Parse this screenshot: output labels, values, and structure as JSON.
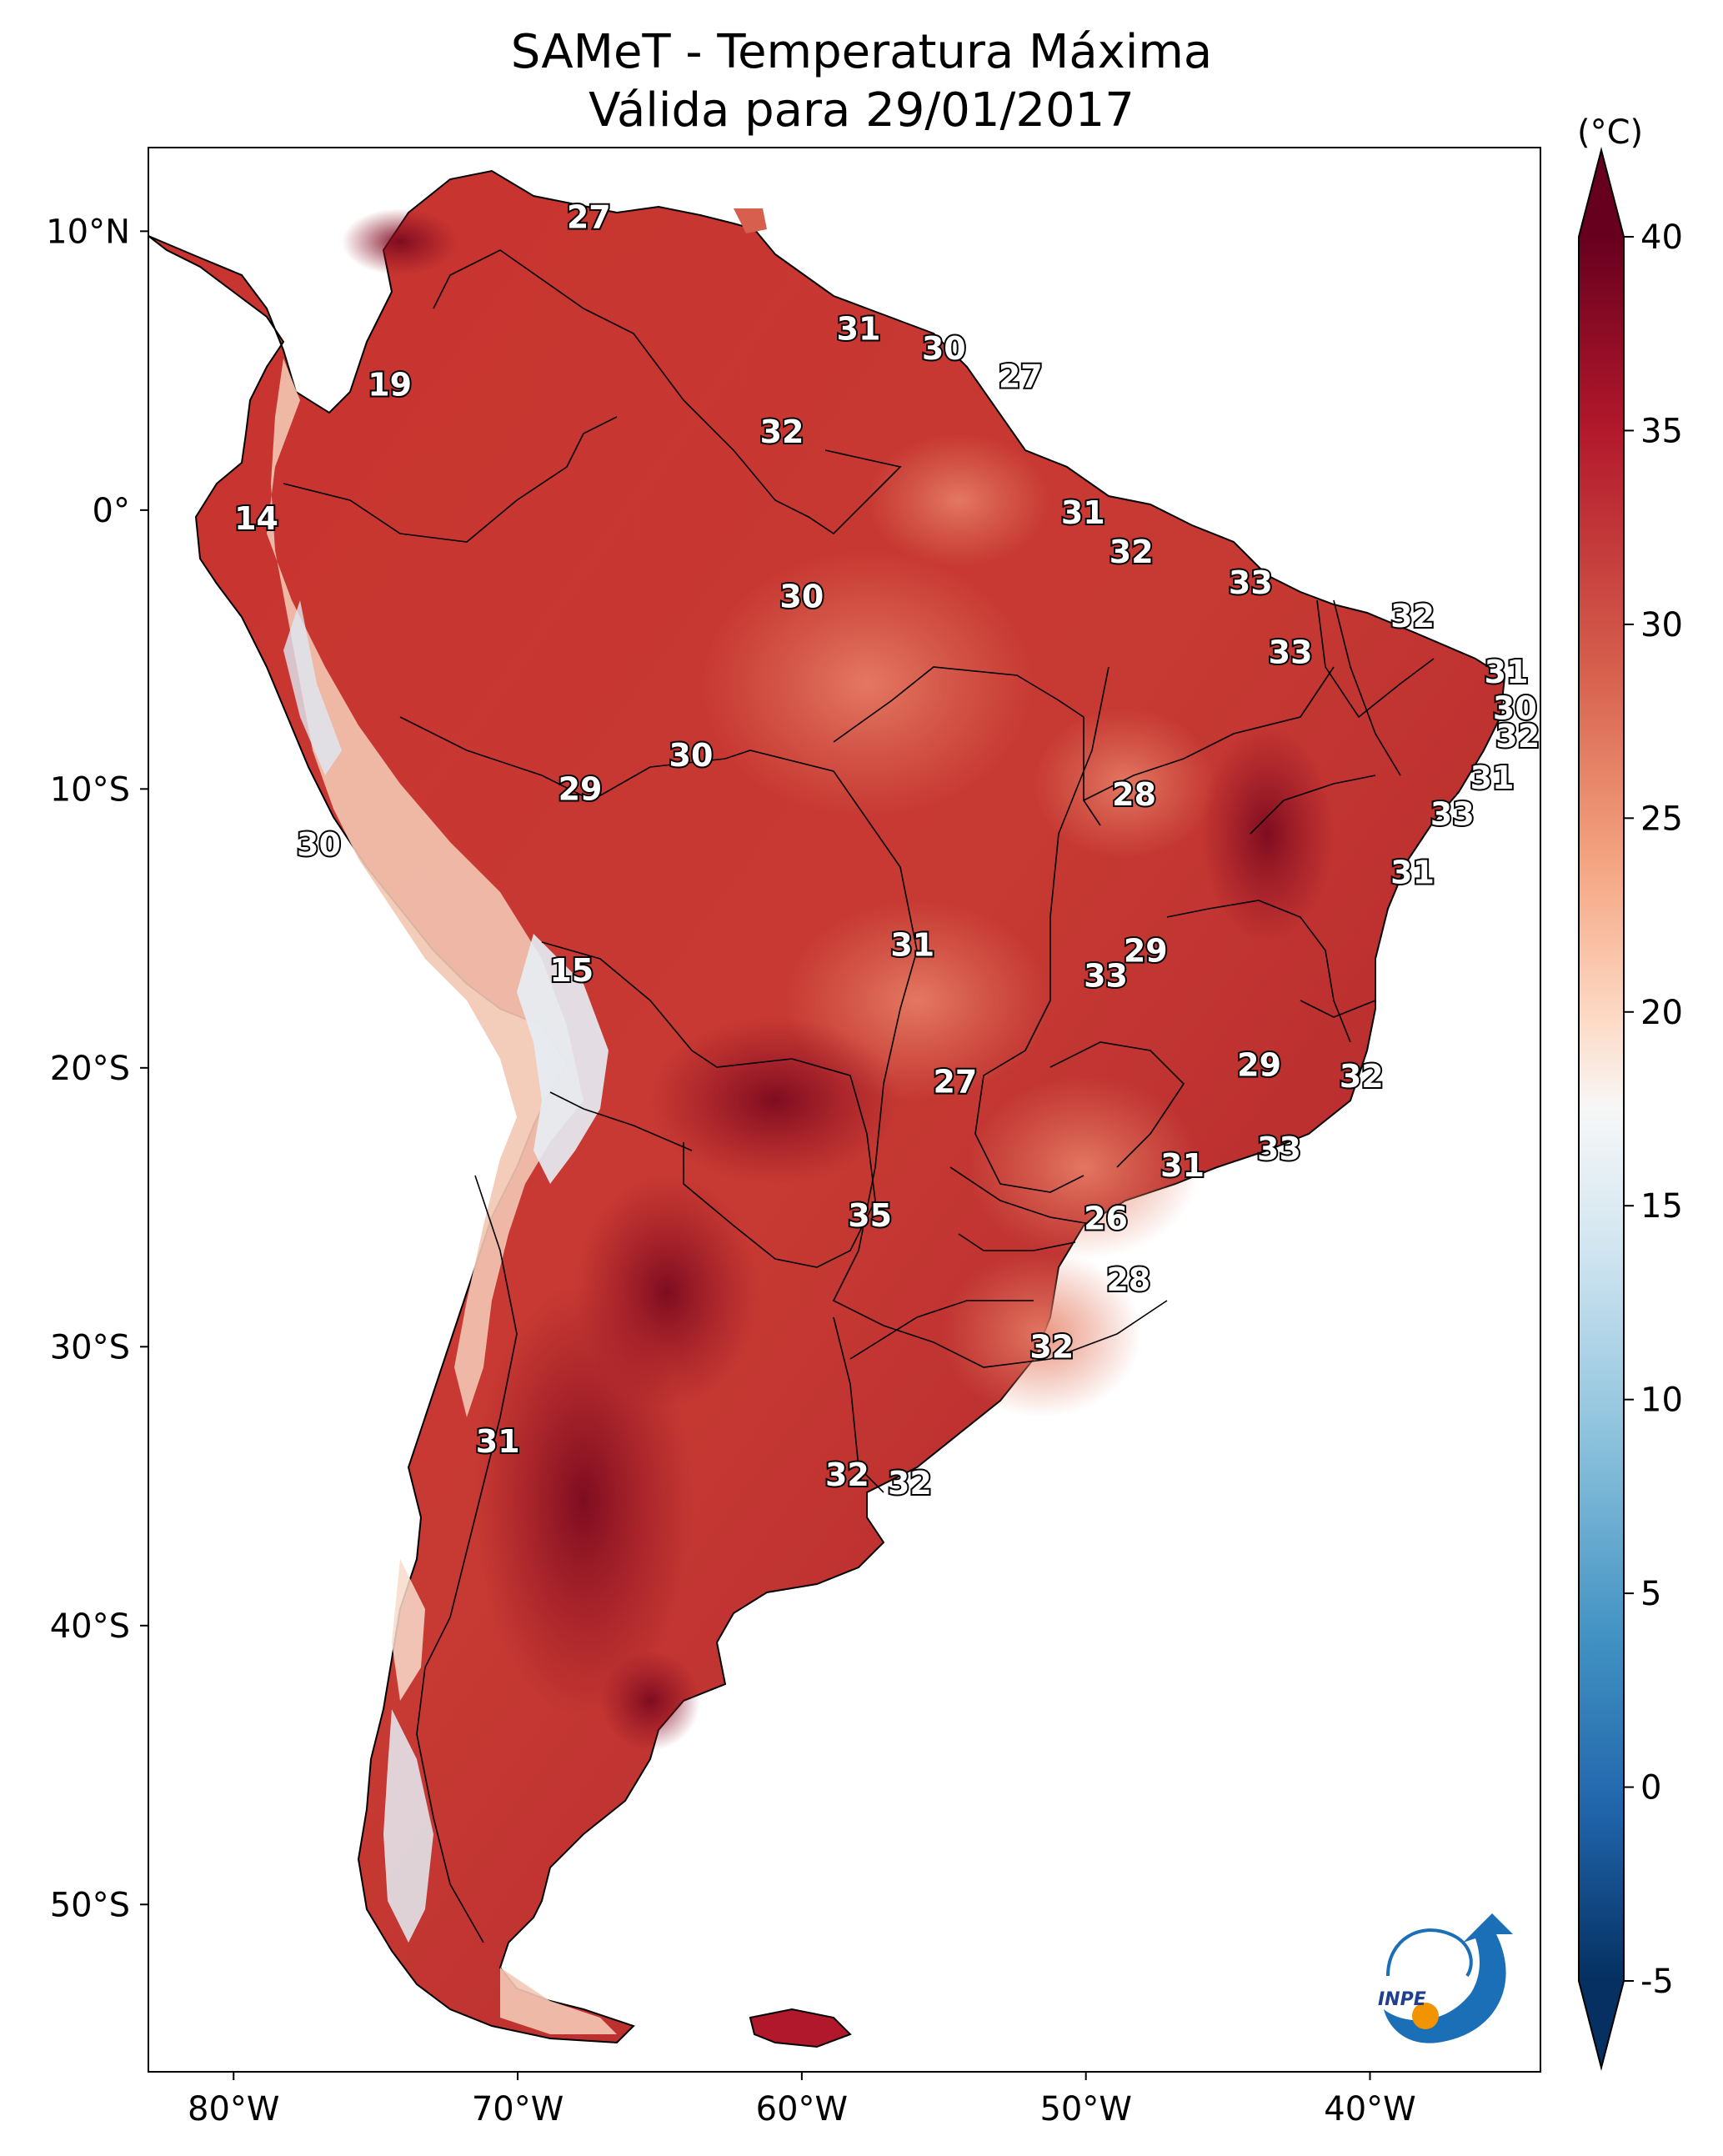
{
  "title": {
    "line1": "SAMeT - Temperatura Máxima",
    "line2": "Válida para 29/01/2017"
  },
  "colorbar": {
    "unit": "(°C)",
    "ticks": [
      "40",
      "35",
      "30",
      "25",
      "20",
      "15",
      "10",
      "5",
      "0",
      "-5"
    ]
  },
  "axes": {
    "lat_labels": [
      "10°N",
      "0°",
      "10°S",
      "20°S",
      "30°S",
      "40°S",
      "50°S"
    ],
    "lon_labels": [
      "80°W",
      "70°W",
      "60°W",
      "50°W",
      "40°W"
    ]
  },
  "logo": {
    "text": "INPE"
  },
  "map_data": {
    "region": "South America",
    "variable": "Temperatura Máxima",
    "lon_range": [
      -83,
      -34
    ],
    "lat_range": [
      -56,
      13
    ],
    "colorbar_range": [
      -5,
      40
    ],
    "colormap": "RdBu_r",
    "station_values": [
      {
        "label": "27",
        "lon": -67.5,
        "lat": 10.5
      },
      {
        "label": "31",
        "lon": -58.0,
        "lat": 6.5
      },
      {
        "label": "30",
        "lon": -55.0,
        "lat": 5.8
      },
      {
        "label": "27",
        "lon": -52.3,
        "lat": 4.8
      },
      {
        "label": "19",
        "lon": -74.5,
        "lat": 4.5
      },
      {
        "label": "32",
        "lon": -60.7,
        "lat": 2.8
      },
      {
        "label": "14",
        "lon": -79.2,
        "lat": -0.3
      },
      {
        "label": "31",
        "lon": -50.1,
        "lat": -0.1
      },
      {
        "label": "32",
        "lon": -48.4,
        "lat": -1.5
      },
      {
        "label": "33",
        "lon": -44.2,
        "lat": -2.6
      },
      {
        "label": "30",
        "lon": -60.0,
        "lat": -3.1
      },
      {
        "label": "32",
        "lon": -38.5,
        "lat": -3.8
      },
      {
        "label": "33",
        "lon": -42.8,
        "lat": -5.1
      },
      {
        "label": "31",
        "lon": -35.2,
        "lat": -5.8
      },
      {
        "label": "30",
        "lon": -34.9,
        "lat": -7.1
      },
      {
        "label": "32",
        "lon": -34.8,
        "lat": -8.1
      },
      {
        "label": "30",
        "lon": -63.9,
        "lat": -8.8
      },
      {
        "label": "29",
        "lon": -67.8,
        "lat": -10.0
      },
      {
        "label": "31",
        "lon": -35.7,
        "lat": -9.6
      },
      {
        "label": "28",
        "lon": -48.3,
        "lat": -10.2
      },
      {
        "label": "33",
        "lon": -37.1,
        "lat": -10.9
      },
      {
        "label": "30",
        "lon": -77.0,
        "lat": -12.0
      },
      {
        "label": "31",
        "lon": -38.5,
        "lat": -13.0
      },
      {
        "label": "31",
        "lon": -56.1,
        "lat": -15.6
      },
      {
        "label": "29",
        "lon": -47.9,
        "lat": -15.8
      },
      {
        "label": "15",
        "lon": -68.1,
        "lat": -16.5
      },
      {
        "label": "33",
        "lon": -49.3,
        "lat": -16.7
      },
      {
        "label": "29",
        "lon": -43.9,
        "lat": -19.9
      },
      {
        "label": "32",
        "lon": -40.3,
        "lat": -20.3
      },
      {
        "label": "27",
        "lon": -54.6,
        "lat": -20.5
      },
      {
        "label": "33",
        "lon": -43.2,
        "lat": -22.9
      },
      {
        "label": "31",
        "lon": -46.6,
        "lat": -23.5
      },
      {
        "label": "35",
        "lon": -57.6,
        "lat": -25.3
      },
      {
        "label": "26",
        "lon": -49.3,
        "lat": -25.4
      },
      {
        "label": "28",
        "lon": -48.5,
        "lat": -27.6
      },
      {
        "label": "32",
        "lon": -51.2,
        "lat": -30.0
      },
      {
        "label": "31",
        "lon": -70.7,
        "lat": -33.4
      },
      {
        "label": "32",
        "lon": -58.4,
        "lat": -34.6
      },
      {
        "label": "32",
        "lon": -56.2,
        "lat": -34.9
      }
    ]
  }
}
